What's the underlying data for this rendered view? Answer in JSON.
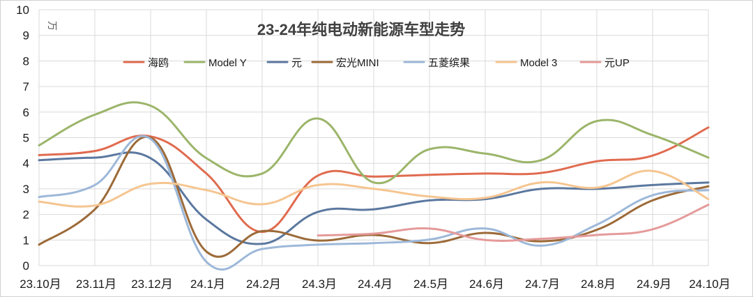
{
  "chart_data": {
    "type": "line",
    "title": "23-24年纯电动新能源车型走势",
    "unit": "万",
    "categories": [
      "23.10月",
      "23.11月",
      "23.12月",
      "24.1月",
      "24.2月",
      "24.3月",
      "24.4月",
      "24.5月",
      "24.6月",
      "24.7月",
      "24.8月",
      "24.9月",
      "24.10月"
    ],
    "ylim": [
      0,
      10
    ],
    "yticks": [
      "0",
      "1",
      "2",
      "3",
      "4",
      "5",
      "6",
      "7",
      "8",
      "9",
      "10"
    ],
    "grid": true,
    "legend_position": "top",
    "series": [
      {
        "name": "海鸥",
        "color": "#E06B4F",
        "values": [
          4.32,
          4.48,
          5.05,
          3.6,
          1.32,
          3.52,
          3.48,
          3.55,
          3.6,
          3.62,
          4.08,
          4.3,
          5.4
        ],
        "x": [
          0,
          1,
          2,
          3,
          4,
          5,
          6,
          7,
          8,
          9,
          10,
          11,
          12
        ]
      },
      {
        "name": "Model Y",
        "color": "#9BB56A",
        "values": [
          4.7,
          5.9,
          6.25,
          4.2,
          3.6,
          5.75,
          3.25,
          4.55,
          4.38,
          4.12,
          5.65,
          5.1,
          4.22
        ],
        "x": [
          0,
          1,
          2,
          3,
          4,
          5,
          6,
          7,
          8,
          9,
          10,
          11,
          12
        ]
      },
      {
        "name": "元",
        "color": "#5B789F",
        "values": [
          4.12,
          4.22,
          4.2,
          1.8,
          0.85,
          2.1,
          2.2,
          2.55,
          2.6,
          3.0,
          3.0,
          3.15,
          3.25
        ],
        "x": [
          0,
          1,
          2,
          3,
          4,
          5,
          6,
          7,
          8,
          9,
          10,
          11,
          12
        ]
      },
      {
        "name": "宏光MINI",
        "color": "#9C6A38",
        "values": [
          0.82,
          2.2,
          5.0,
          0.55,
          1.35,
          0.98,
          1.2,
          0.88,
          1.28,
          0.95,
          1.4,
          2.55,
          3.1
        ],
        "x": [
          0,
          1,
          2,
          3,
          4,
          5,
          6,
          7,
          8,
          9,
          10,
          11,
          12
        ]
      },
      {
        "name": "五菱缤果",
        "color": "#9DB8D9",
        "values": [
          2.68,
          3.15,
          4.95,
          0.15,
          0.65,
          0.82,
          0.88,
          1.02,
          1.45,
          0.78,
          1.6,
          2.75,
          2.95
        ],
        "x": [
          0,
          1,
          2,
          3,
          4,
          5,
          6,
          7,
          8,
          9,
          10,
          11,
          12
        ]
      },
      {
        "name": "Model 3",
        "color": "#F5C590",
        "values": [
          2.5,
          2.35,
          3.2,
          2.95,
          2.4,
          3.15,
          3.0,
          2.7,
          2.65,
          3.25,
          3.05,
          3.7,
          2.6
        ],
        "x": [
          0,
          1,
          2,
          3,
          4,
          5,
          6,
          7,
          8,
          9,
          10,
          11,
          12
        ]
      },
      {
        "name": "元UP",
        "color": "#E59A9A",
        "values": [
          1.18,
          1.25,
          1.45,
          1.0,
          1.05,
          1.2,
          1.42,
          2.38
        ],
        "x": [
          5,
          6,
          7,
          8,
          9,
          10,
          11,
          12
        ]
      }
    ]
  }
}
